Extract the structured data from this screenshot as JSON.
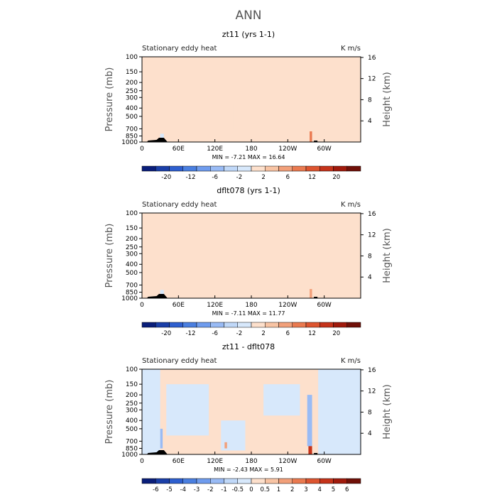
{
  "figure": {
    "title": "ANN"
  },
  "chart_data": [
    {
      "type": "heatmap",
      "title": "zt11 (yrs 1-1)",
      "left_label": "Stationary eddy heat",
      "right_label": "K m/s",
      "xlabel": "",
      "ylabel": "Pressure (mb)",
      "ylabel_right": "Height (km)",
      "x_ticks": [
        "0",
        "60E",
        "120E",
        "180",
        "120W",
        "60W"
      ],
      "y_ticks": [
        "100",
        "150",
        "200",
        "250",
        "300",
        "400",
        "500",
        "700",
        "850",
        "1000"
      ],
      "y_right_ticks": [
        "4",
        "8",
        "12",
        "16"
      ],
      "y_log_scale": true,
      "ylim": [
        1000,
        100
      ],
      "xlim": [
        0,
        360
      ],
      "stats_text": "MIN = -7.21   MAX = 16.64",
      "min": -7.21,
      "max": 16.64,
      "colorbar_labels": [
        "-20",
        "-12",
        "-6",
        "-2",
        "2",
        "6",
        "12",
        "20"
      ],
      "colorbar_colors": [
        "#0a1e7a",
        "#1a3fa8",
        "#2e5fcf",
        "#4a7fe0",
        "#6f9cee",
        "#99bbf5",
        "#c0d8f8",
        "#d7e8fb",
        "#fde0cc",
        "#f8c4a4",
        "#f2a07a",
        "#ea7a50",
        "#dd5530",
        "#c5331a",
        "#a01a0c",
        "#701008"
      ],
      "regions": [
        {
          "x0": 0,
          "x1": 360,
          "p0": 100,
          "p1": 1000,
          "value": 0.5
        },
        {
          "x0": 0,
          "x1": 28,
          "p0": 100,
          "p1": 1000,
          "value": -0.5
        },
        {
          "x0": 28,
          "x1": 38,
          "p0": 100,
          "p1": 1000,
          "value": -1.5
        },
        {
          "x0": 38,
          "x1": 120,
          "p0": 130,
          "p1": 400,
          "value": -0.5
        },
        {
          "x0": 110,
          "x1": 135,
          "p0": 100,
          "p1": 800,
          "value": -0.5
        },
        {
          "x0": 150,
          "x1": 200,
          "p0": 350,
          "p1": 700,
          "value": -0.5
        },
        {
          "x0": 215,
          "x1": 255,
          "p0": 250,
          "p1": 650,
          "value": -0.5
        },
        {
          "x0": 280,
          "x1": 300,
          "p0": 100,
          "p1": 700,
          "value": -0.5
        },
        {
          "x0": 300,
          "x1": 360,
          "p0": 130,
          "p1": 300,
          "value": -0.5
        },
        {
          "x0": 30,
          "x1": 36,
          "p0": 800,
          "p1": 1000,
          "value": -4
        },
        {
          "x0": 276,
          "x1": 280,
          "p0": 750,
          "p1": 1000,
          "value": 14
        }
      ]
    },
    {
      "type": "heatmap",
      "title": "dflt078 (yrs 1-1)",
      "left_label": "Stationary eddy heat",
      "right_label": "K m/s",
      "xlabel": "",
      "ylabel": "Pressure (mb)",
      "ylabel_right": "Height (km)",
      "x_ticks": [
        "0",
        "60E",
        "120E",
        "180",
        "120W",
        "60W"
      ],
      "y_ticks": [
        "100",
        "150",
        "200",
        "250",
        "300",
        "400",
        "500",
        "700",
        "850",
        "1000"
      ],
      "y_right_ticks": [
        "4",
        "8",
        "12",
        "16"
      ],
      "y_log_scale": true,
      "ylim": [
        1000,
        100
      ],
      "xlim": [
        0,
        360
      ],
      "stats_text": "MIN = -7.11   MAX = 11.77",
      "min": -7.11,
      "max": 11.77,
      "colorbar_labels": [
        "-20",
        "-12",
        "-6",
        "-2",
        "2",
        "6",
        "12",
        "20"
      ],
      "colorbar_colors": [
        "#0a1e7a",
        "#1a3fa8",
        "#2e5fcf",
        "#4a7fe0",
        "#6f9cee",
        "#99bbf5",
        "#c0d8f8",
        "#d7e8fb",
        "#fde0cc",
        "#f8c4a4",
        "#f2a07a",
        "#ea7a50",
        "#dd5530",
        "#c5331a",
        "#a01a0c",
        "#701008"
      ],
      "regions": [
        {
          "x0": 0,
          "x1": 360,
          "p0": 100,
          "p1": 1000,
          "value": 0.5
        },
        {
          "x0": 0,
          "x1": 20,
          "p0": 100,
          "p1": 1000,
          "value": -0.5
        },
        {
          "x0": 40,
          "x1": 100,
          "p0": 100,
          "p1": 800,
          "value": -0.5
        },
        {
          "x0": 110,
          "x1": 130,
          "p0": 100,
          "p1": 800,
          "value": -0.5
        },
        {
          "x0": 130,
          "x1": 180,
          "p0": 350,
          "p1": 650,
          "value": -0.5
        },
        {
          "x0": 260,
          "x1": 300,
          "p0": 100,
          "p1": 900,
          "value": -0.5
        },
        {
          "x0": 310,
          "x1": 360,
          "p0": 250,
          "p1": 600,
          "value": -0.5
        },
        {
          "x0": 30,
          "x1": 36,
          "p0": 800,
          "p1": 1000,
          "value": -4
        },
        {
          "x0": 276,
          "x1": 280,
          "p0": 780,
          "p1": 1000,
          "value": 10
        }
      ]
    },
    {
      "type": "heatmap",
      "title": "zt11 - dflt078",
      "left_label": "Stationary eddy heat",
      "right_label": "K m/s",
      "xlabel": "",
      "ylabel": "Pressure (mb)",
      "ylabel_right": "Height (km)",
      "x_ticks": [
        "0",
        "60E",
        "120E",
        "180",
        "120W",
        "60W"
      ],
      "y_ticks": [
        "100",
        "150",
        "200",
        "250",
        "300",
        "400",
        "500",
        "700",
        "850",
        "1000"
      ],
      "y_right_ticks": [
        "4",
        "8",
        "12",
        "16"
      ],
      "y_log_scale": true,
      "ylim": [
        1000,
        100
      ],
      "xlim": [
        0,
        360
      ],
      "stats_text": "MIN = -2.43   MAX = 5.91",
      "min": -2.43,
      "max": 5.91,
      "colorbar_labels": [
        "-6",
        "-5",
        "-4",
        "-3",
        "-2",
        "-1",
        "-0.5",
        "0",
        "0.5",
        "1",
        "2",
        "3",
        "4",
        "5",
        "6"
      ],
      "colorbar_colors": [
        "#0a1e7a",
        "#1a3fa8",
        "#2e5fcf",
        "#4a7fe0",
        "#6f9cee",
        "#99bbf5",
        "#c0d8f8",
        "#d7e8fb",
        "#fde0cc",
        "#f8c4a4",
        "#f2a07a",
        "#ea7a50",
        "#dd5530",
        "#c5331a",
        "#a01a0c",
        "#701008"
      ],
      "regions": [
        {
          "x0": 0,
          "x1": 360,
          "p0": 100,
          "p1": 1000,
          "value": 0.2
        },
        {
          "x0": 0,
          "x1": 30,
          "p0": 100,
          "p1": 1000,
          "value": -0.2
        },
        {
          "x0": 40,
          "x1": 110,
          "p0": 150,
          "p1": 600,
          "value": -0.2
        },
        {
          "x0": 130,
          "x1": 170,
          "p0": 400,
          "p1": 900,
          "value": -0.2
        },
        {
          "x0": 200,
          "x1": 260,
          "p0": 150,
          "p1": 350,
          "value": -0.2
        },
        {
          "x0": 290,
          "x1": 360,
          "p0": 100,
          "p1": 1000,
          "value": -0.2
        },
        {
          "x0": 30,
          "x1": 34,
          "p0": 500,
          "p1": 850,
          "value": -1.5
        },
        {
          "x0": 272,
          "x1": 280,
          "p0": 200,
          "p1": 800,
          "value": -1.5
        },
        {
          "x0": 274,
          "x1": 280,
          "p0": 800,
          "p1": 1000,
          "value": 4.5
        },
        {
          "x0": 136,
          "x1": 140,
          "p0": 720,
          "p1": 850,
          "value": 1.5
        }
      ]
    }
  ]
}
